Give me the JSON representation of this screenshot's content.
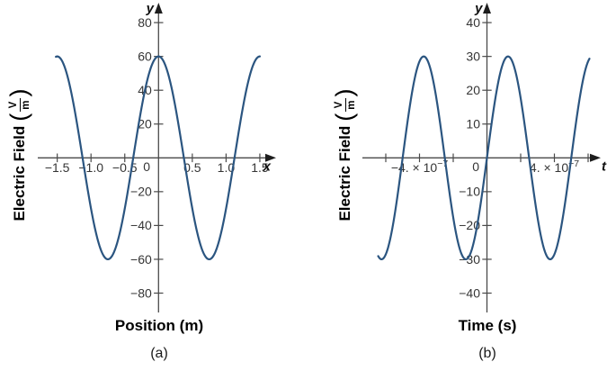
{
  "figure": {
    "background": "#ffffff",
    "axis_color": "#4a4a4a",
    "tick_text_color": "#353535",
    "arrow_color": "#1d1d1d",
    "curve_color": "#2b5580"
  },
  "chart_data": [
    {
      "id": "a",
      "type": "line",
      "title": "",
      "xlabel": "Position (m)",
      "ylabel": "Electric Field (V/m)",
      "ylabel_parts": {
        "text": "Electric Field",
        "unit_numerator": "V",
        "unit_denominator": "m"
      },
      "x_axis_letter": "x",
      "y_axis_letter": "y",
      "origin_label": "0",
      "caption": "(a)",
      "grid": false,
      "legend": "none",
      "xlim": [
        -1.75,
        1.75
      ],
      "ylim": [
        -95,
        95
      ],
      "xticks": [
        {
          "v": -1.5,
          "label": "−1.5"
        },
        {
          "v": -1.0,
          "label": "−1.0"
        },
        {
          "v": -0.5,
          "label": "−0.5"
        },
        {
          "v": 0.5,
          "label": "0.5"
        },
        {
          "v": 1.0,
          "label": "1.0"
        },
        {
          "v": 1.5,
          "label": "1.5"
        }
      ],
      "yticks": [
        {
          "v": 80,
          "label": "80"
        },
        {
          "v": 60,
          "label": "60"
        },
        {
          "v": 40,
          "label": "40"
        },
        {
          "v": 20,
          "label": "20"
        },
        {
          "v": -20,
          "label": "−20"
        },
        {
          "v": -40,
          "label": "−40"
        },
        {
          "v": -60,
          "label": "−60"
        },
        {
          "v": -80,
          "label": "−80"
        }
      ],
      "series": [
        {
          "name": "electric-field-vs-position",
          "function": "cosine",
          "amplitude": 60,
          "period": 1.5,
          "phase": 0,
          "domain": [
            -1.52,
            1.5
          ],
          "peaks_at_x": [
            -1.5,
            0,
            1.5
          ],
          "minima_at_x": [
            -0.75,
            0.75
          ],
          "zero_crossings_x": [
            -1.125,
            -0.375,
            0.375,
            1.125
          ],
          "value_at_0": 60
        }
      ]
    },
    {
      "id": "b",
      "type": "line",
      "title": "",
      "xlabel": "Time (s)",
      "ylabel": "Electric Field (V/m)",
      "ylabel_parts": {
        "text": "Electric Field",
        "unit_numerator": "V",
        "unit_denominator": "m"
      },
      "x_axis_letter": "t",
      "y_axis_letter": "y",
      "origin_label": "0",
      "caption": "(b)",
      "grid": false,
      "legend": "none",
      "xlim": [
        -7e-07,
        7e-07
      ],
      "ylim": [
        -47,
        47
      ],
      "xticks": [
        {
          "v": -6e-07,
          "label": ""
        },
        {
          "v": -4e-07,
          "label": "−4. × 10^−7"
        },
        {
          "v": -2e-07,
          "label": ""
        },
        {
          "v": 2e-07,
          "label": ""
        },
        {
          "v": 4e-07,
          "label": "4. × 10^−7"
        },
        {
          "v": 6e-07,
          "label": ""
        }
      ],
      "yticks": [
        {
          "v": 40,
          "label": "40"
        },
        {
          "v": 30,
          "label": "30"
        },
        {
          "v": 20,
          "label": "20"
        },
        {
          "v": 10,
          "label": "10"
        },
        {
          "v": -10,
          "label": "−10"
        },
        {
          "v": -20,
          "label": "−20"
        },
        {
          "v": -30,
          "label": "−30"
        },
        {
          "v": -40,
          "label": "−40"
        }
      ],
      "series": [
        {
          "name": "electric-field-vs-time",
          "function": "sine",
          "amplitude": 30,
          "period": 5e-07,
          "phase": 0,
          "domain": [
            -6.45e-07,
            6.08e-07
          ],
          "peaks_at_x": [
            -3.75e-07,
            1.25e-07
          ],
          "minima_at_x": [
            -1.25e-07,
            3.75e-07
          ],
          "zero_crossings_x": [
            -5e-07,
            -2.5e-07,
            0,
            2.5e-07,
            5e-07
          ],
          "value_at_0": 0
        }
      ]
    }
  ]
}
